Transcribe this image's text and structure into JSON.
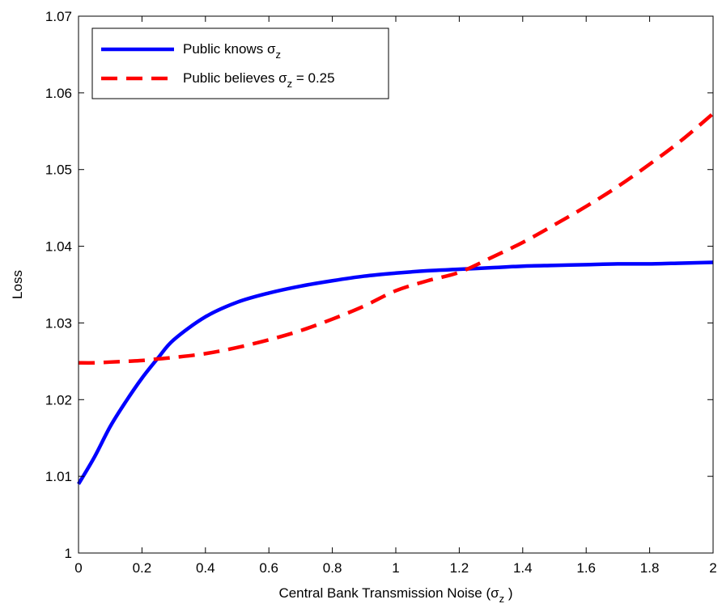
{
  "chart_data": {
    "type": "line",
    "xlabel": {
      "prefix": "Central Bank Transmission Noise (",
      "sigma": "σ",
      "sub": "z",
      "suffix": " )"
    },
    "ylabel": "Loss",
    "xlim": [
      0,
      2
    ],
    "ylim": [
      1.0,
      1.07
    ],
    "xticks": [
      0,
      0.2,
      0.4,
      0.6,
      0.8,
      1,
      1.2,
      1.4,
      1.6,
      1.8,
      2
    ],
    "xtick_labels": [
      "0",
      "0.2",
      "0.4",
      "0.6",
      "0.8",
      "1",
      "1.2",
      "1.4",
      "1.6",
      "1.8",
      "2"
    ],
    "yticks": [
      1.0,
      1.01,
      1.02,
      1.03,
      1.04,
      1.05,
      1.06,
      1.07
    ],
    "ytick_labels": [
      "1",
      "1.01",
      "1.02",
      "1.03",
      "1.04",
      "1.05",
      "1.06",
      "1.07"
    ],
    "grid": false,
    "legend_position": "top-left",
    "x": [
      0,
      0.05,
      0.1,
      0.15,
      0.2,
      0.25,
      0.3,
      0.4,
      0.5,
      0.6,
      0.7,
      0.8,
      0.9,
      1.0,
      1.1,
      1.2,
      1.3,
      1.4,
      1.5,
      1.6,
      1.7,
      1.8,
      1.9,
      2.0
    ],
    "series": [
      {
        "name": "Public knows σ_z",
        "legend": {
          "label": "Public knows ",
          "sigma": "σ",
          "sub": "z",
          "suffix": ""
        },
        "color": "#0000ff",
        "style": "solid",
        "values": [
          1.009,
          1.0125,
          1.0165,
          1.0198,
          1.0228,
          1.0254,
          1.0278,
          1.0308,
          1.0327,
          1.0339,
          1.0348,
          1.0355,
          1.0361,
          1.0365,
          1.0368,
          1.037,
          1.0372,
          1.0374,
          1.0375,
          1.0376,
          1.0377,
          1.0377,
          1.0378,
          1.0379
        ]
      },
      {
        "name": "Public believes σ_z = 0.25",
        "legend": {
          "label": "Public believes ",
          "sigma": "σ",
          "sub": "z",
          "suffix": " = 0.25"
        },
        "color": "#ff0000",
        "style": "dashed",
        "values": [
          1.0248,
          1.0248,
          1.0249,
          1.025,
          1.0251,
          1.0253,
          1.0255,
          1.026,
          1.0268,
          1.0278,
          1.029,
          1.0305,
          1.0322,
          1.0342,
          1.0355,
          1.0366,
          1.0385,
          1.0405,
          1.0428,
          1.0452,
          1.0478,
          1.0507,
          1.0538,
          1.0573
        ]
      }
    ]
  }
}
